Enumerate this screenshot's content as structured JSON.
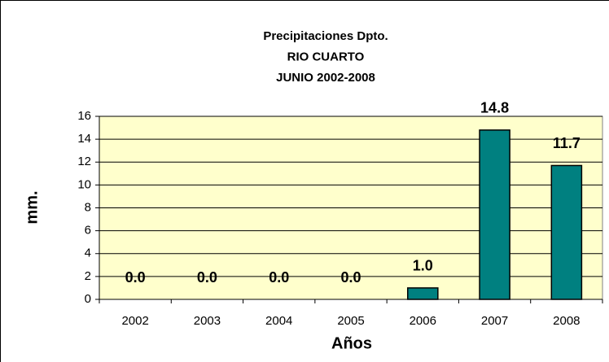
{
  "chart_data": {
    "type": "bar",
    "title": [
      "Precipitaciones Dpto.",
      "RIO CUARTO",
      "JUNIO  2002-2008"
    ],
    "categories": [
      "2002",
      "2003",
      "2004",
      "2005",
      "2006",
      "2007",
      "2008"
    ],
    "values": [
      0,
      0,
      0,
      0,
      1.0,
      14.8,
      11.7
    ],
    "value_labels": [
      "0.0",
      "0.0",
      "0.0",
      "0.0",
      "1.0",
      "14.8",
      "11.7"
    ],
    "color": "#008080",
    "xlabel": "Años",
    "ylabel": "mm.",
    "ylim": [
      0,
      16
    ],
    "yticks": [
      0,
      2,
      4,
      6,
      8,
      10,
      12,
      14,
      16
    ],
    "grid": true,
    "plot_background": "#ffffcc"
  }
}
